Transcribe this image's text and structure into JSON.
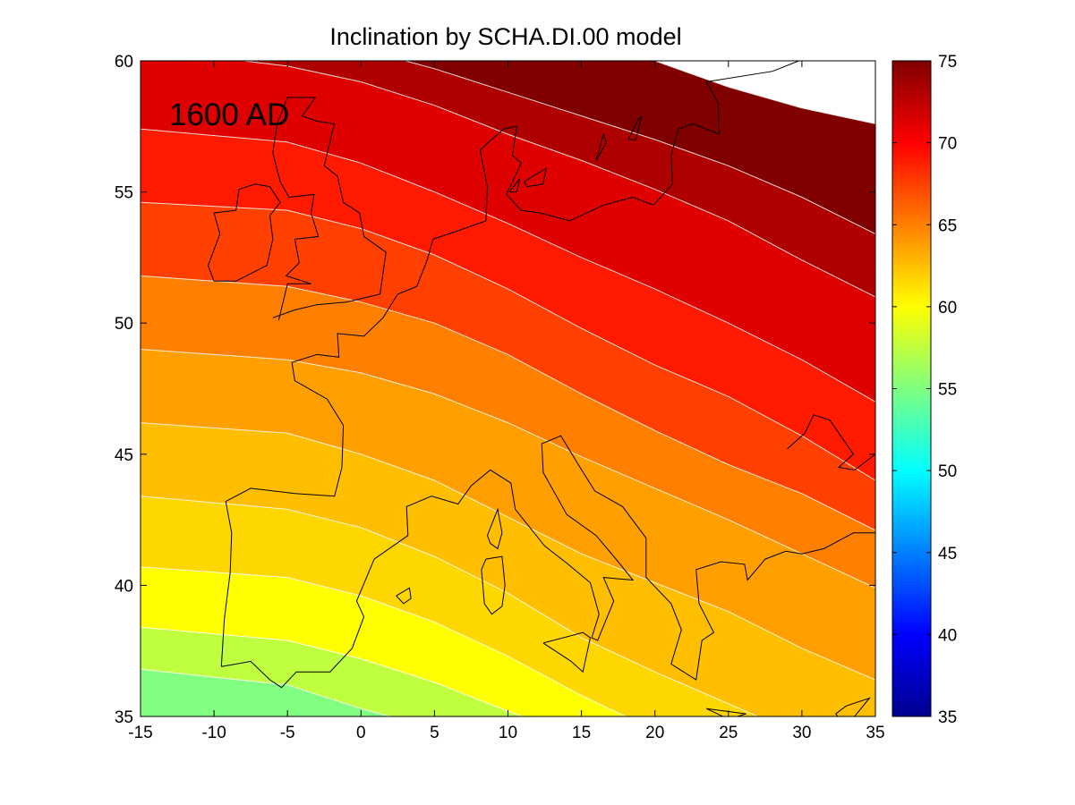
{
  "chart_data": {
    "type": "heatmap",
    "title": "Inclination by SCHA.DI.00 model",
    "annotation": "1600 AD",
    "x": {
      "min": -15,
      "max": 35,
      "ticks": [
        "-15",
        "-10",
        "-5",
        "0",
        "5",
        "10",
        "15",
        "20",
        "25",
        "30",
        "35"
      ]
    },
    "y": {
      "min": 35,
      "max": 60,
      "ticks": [
        "35",
        "40",
        "45",
        "50",
        "55",
        "60"
      ]
    },
    "colorbar": {
      "min": 35,
      "max": 75,
      "ticks": [
        "35",
        "40",
        "45",
        "50",
        "55",
        "60",
        "65",
        "70",
        "75"
      ],
      "colormap": "jet"
    },
    "contour_levels": [
      57.5,
      60,
      62.5,
      65,
      67.5,
      70,
      72.5
    ],
    "contours": [
      {
        "level": 57.5,
        "points": [
          [
            -15,
            36.8
          ],
          [
            -5,
            36.2
          ],
          [
            0,
            35.3
          ],
          [
            2,
            35
          ]
        ]
      },
      {
        "level": 60,
        "points": [
          [
            -15,
            38.4
          ],
          [
            -5,
            37.9
          ],
          [
            0,
            37.2
          ],
          [
            5,
            36.3
          ],
          [
            10,
            35.2
          ],
          [
            11,
            35
          ]
        ]
      },
      {
        "level": 62.5,
        "points": [
          [
            -15,
            40.7
          ],
          [
            -5,
            40.3
          ],
          [
            0,
            39.6
          ],
          [
            5,
            38.6
          ],
          [
            10,
            37.3
          ],
          [
            15,
            35.8
          ],
          [
            18,
            35
          ]
        ]
      },
      {
        "level": 65,
        "points": [
          [
            -15,
            43.4
          ],
          [
            -5,
            42.9
          ],
          [
            0,
            42.2
          ],
          [
            5,
            41.1
          ],
          [
            10,
            39.7
          ],
          [
            15,
            38.0
          ],
          [
            20,
            36.7
          ],
          [
            27,
            35
          ]
        ]
      },
      {
        "level": 67.5,
        "points": [
          [
            -15,
            46.2
          ],
          [
            -5,
            45.8
          ],
          [
            0,
            45.0
          ],
          [
            5,
            44.0
          ],
          [
            10,
            42.6
          ],
          [
            15,
            41.2
          ],
          [
            20,
            40.1
          ],
          [
            25,
            39.0
          ],
          [
            30,
            37.6
          ],
          [
            35,
            36.4
          ]
        ]
      },
      {
        "level": 70,
        "points": [
          [
            -15,
            49.0
          ],
          [
            -5,
            48.6
          ],
          [
            0,
            48.1
          ],
          [
            5,
            47.3
          ],
          [
            10,
            46.2
          ],
          [
            15,
            44.9
          ],
          [
            20,
            43.7
          ],
          [
            25,
            42.5
          ],
          [
            30,
            41.2
          ],
          [
            35,
            39.9
          ]
        ]
      },
      {
        "level": 72.5,
        "points": [
          [
            -15,
            51.8
          ],
          [
            -5,
            51.4
          ],
          [
            0,
            50.8
          ],
          [
            5,
            50.0
          ],
          [
            10,
            48.8
          ],
          [
            15,
            47.3
          ],
          [
            20,
            45.9
          ],
          [
            25,
            44.6
          ],
          [
            30,
            43.5
          ],
          [
            35,
            42.1
          ]
        ]
      },
      {
        "level": 75,
        "points": [
          [
            -15,
            54.6
          ],
          [
            -5,
            54.3
          ],
          [
            0,
            53.6
          ],
          [
            5,
            52.6
          ],
          [
            10,
            51.3
          ],
          [
            15,
            49.8
          ],
          [
            20,
            48.4
          ],
          [
            25,
            47.2
          ],
          [
            30,
            45.7
          ],
          [
            35,
            44.0
          ]
        ]
      },
      {
        "level": 77.5,
        "points": [
          [
            -15,
            57.4
          ],
          [
            -5,
            56.9
          ],
          [
            0,
            56.1
          ],
          [
            5,
            55.0
          ],
          [
            10,
            53.8
          ],
          [
            15,
            52.5
          ],
          [
            20,
            51.3
          ],
          [
            25,
            50.0
          ],
          [
            30,
            48.6
          ],
          [
            35,
            47.0
          ]
        ]
      },
      {
        "level": 80,
        "points": [
          [
            -8,
            60
          ],
          [
            -5,
            59.8
          ],
          [
            0,
            59.2
          ],
          [
            5,
            58.3
          ],
          [
            10,
            57.2
          ],
          [
            15,
            56.2
          ],
          [
            20,
            55.1
          ],
          [
            25,
            53.9
          ],
          [
            30,
            52.4
          ],
          [
            35,
            51.0
          ]
        ]
      },
      {
        "level": 82.5,
        "points": [
          [
            3,
            60
          ],
          [
            5,
            59.7
          ],
          [
            10,
            58.8
          ],
          [
            15,
            57.9
          ],
          [
            20,
            57.0
          ],
          [
            25,
            56.0
          ],
          [
            30,
            54.8
          ],
          [
            35,
            53.4
          ]
        ]
      },
      {
        "level": 85,
        "points": [
          [
            20,
            60
          ],
          [
            25,
            59.0
          ],
          [
            30,
            58.2
          ],
          [
            35,
            57.6
          ]
        ]
      }
    ],
    "color_bands": [
      {
        "range": "57.5-60",
        "color": "#80ff80"
      },
      {
        "range": "60-62.5",
        "color": "#bfff40"
      },
      {
        "range": "62.5-65",
        "color": "#ffff00"
      },
      {
        "range": "65-67.5",
        "color": "#ffd700"
      },
      {
        "range": "67.5-70",
        "color": "#ffbf00"
      },
      {
        "range": "70-72.5",
        "color": "#ff9f00"
      },
      {
        "range": "72.5-75",
        "color": "#ff8000"
      },
      {
        "range": "75-77.5",
        "color": "#ff4000"
      },
      {
        "range": "77.5-80",
        "color": "#ff1a00"
      },
      {
        "range": "80-82.5",
        "color": "#df0000"
      },
      {
        "range": "82.5-85",
        "color": "#af0000"
      },
      {
        "range": "85-87.5",
        "color": "#800000"
      }
    ],
    "coastlines": [
      [
        [
          -9.5,
          36.9
        ],
        [
          -9.3,
          38.7
        ],
        [
          -8.9,
          40.5
        ],
        [
          -8.8,
          42.0
        ],
        [
          -9.2,
          43.2
        ],
        [
          -7.5,
          43.7
        ],
        [
          -4.5,
          43.5
        ],
        [
          -1.8,
          43.4
        ],
        [
          -1.3,
          44.5
        ],
        [
          -1.2,
          46.1
        ],
        [
          -2.3,
          47.1
        ],
        [
          -4.5,
          47.8
        ],
        [
          -4.7,
          48.5
        ],
        [
          -3.0,
          48.8
        ],
        [
          -1.5,
          48.7
        ],
        [
          -1.6,
          49.6
        ],
        [
          0.2,
          49.5
        ],
        [
          1.5,
          50.2
        ],
        [
          2.5,
          51.1
        ],
        [
          3.8,
          51.4
        ],
        [
          4.5,
          52.4
        ],
        [
          4.9,
          53.2
        ],
        [
          6.5,
          53.5
        ],
        [
          8.5,
          53.9
        ],
        [
          8.6,
          55.2
        ],
        [
          8.1,
          56.6
        ],
        [
          9.7,
          57.4
        ],
        [
          10.6,
          57.5
        ],
        [
          10.3,
          56.4
        ],
        [
          10.9,
          56.1
        ],
        [
          9.9,
          54.9
        ],
        [
          10.9,
          54.3
        ],
        [
          12.2,
          54.2
        ],
        [
          14.2,
          53.9
        ],
        [
          16.5,
          54.5
        ],
        [
          18.5,
          54.8
        ],
        [
          19.9,
          54.5
        ],
        [
          21.2,
          55.3
        ],
        [
          21.1,
          56.4
        ],
        [
          21.6,
          57.4
        ],
        [
          22.6,
          57.6
        ],
        [
          24.4,
          57.2
        ],
        [
          24.3,
          58.4
        ],
        [
          23.5,
          59.2
        ],
        [
          28.0,
          59.6
        ],
        [
          29.8,
          60.0
        ]
      ],
      [
        [
          -9.5,
          36.9
        ],
        [
          -7.5,
          37.1
        ],
        [
          -6.2,
          36.4
        ],
        [
          -5.4,
          36.1
        ],
        [
          -4.4,
          36.7
        ],
        [
          -2.1,
          36.7
        ],
        [
          -0.6,
          37.6
        ],
        [
          0.2,
          38.8
        ],
        [
          -0.3,
          39.4
        ],
        [
          0.9,
          41.0
        ],
        [
          3.2,
          41.9
        ],
        [
          3.1,
          43.0
        ],
        [
          4.8,
          43.4
        ],
        [
          6.6,
          43.1
        ],
        [
          7.5,
          43.8
        ],
        [
          8.8,
          44.4
        ],
        [
          10.2,
          43.9
        ],
        [
          10.5,
          42.9
        ],
        [
          12.5,
          41.5
        ],
        [
          14.1,
          40.8
        ],
        [
          15.6,
          40.1
        ],
        [
          16.2,
          38.9
        ],
        [
          15.7,
          38.0
        ],
        [
          16.1,
          37.9
        ],
        [
          17.2,
          39.4
        ],
        [
          16.5,
          40.3
        ],
        [
          18.5,
          40.2
        ],
        [
          17.5,
          40.9
        ],
        [
          16.0,
          41.9
        ],
        [
          14.0,
          42.7
        ],
        [
          12.4,
          44.3
        ],
        [
          12.3,
          45.4
        ],
        [
          13.6,
          45.7
        ],
        [
          14.9,
          44.5
        ],
        [
          15.9,
          43.6
        ],
        [
          17.8,
          43.0
        ],
        [
          19.4,
          41.8
        ],
        [
          19.4,
          40.3
        ],
        [
          21.1,
          39.3
        ],
        [
          21.8,
          38.3
        ],
        [
          21.1,
          37.0
        ],
        [
          22.8,
          36.4
        ],
        [
          23.2,
          37.9
        ],
        [
          24.0,
          38.2
        ],
        [
          23.0,
          39.3
        ],
        [
          22.8,
          40.6
        ],
        [
          24.5,
          40.9
        ],
        [
          26.1,
          40.8
        ],
        [
          26.3,
          40.2
        ],
        [
          27.5,
          41.0
        ],
        [
          28.9,
          41.3
        ],
        [
          30.0,
          41.2
        ],
        [
          31.5,
          41.4
        ],
        [
          33.5,
          42.0
        ],
        [
          35.0,
          42.0
        ]
      ],
      [
        [
          -6.0,
          50.2
        ],
        [
          -4.5,
          50.5
        ],
        [
          -3.0,
          50.7
        ],
        [
          -1.0,
          50.8
        ],
        [
          1.3,
          51.1
        ],
        [
          1.7,
          52.7
        ],
        [
          0.2,
          53.3
        ],
        [
          -0.1,
          54.2
        ],
        [
          -1.2,
          54.6
        ],
        [
          -1.6,
          55.6
        ],
        [
          -2.5,
          56.0
        ],
        [
          -2.0,
          57.2
        ],
        [
          -1.8,
          57.6
        ],
        [
          -3.0,
          57.7
        ],
        [
          -4.0,
          57.9
        ],
        [
          -3.1,
          58.6
        ],
        [
          -5.0,
          58.6
        ],
        [
          -5.7,
          57.6
        ],
        [
          -6.0,
          56.5
        ],
        [
          -5.5,
          55.4
        ],
        [
          -4.9,
          54.8
        ],
        [
          -3.2,
          54.9
        ],
        [
          -3.4,
          54.2
        ],
        [
          -2.9,
          53.3
        ],
        [
          -4.5,
          53.2
        ],
        [
          -4.2,
          52.3
        ],
        [
          -5.1,
          51.8
        ],
        [
          -3.4,
          51.5
        ],
        [
          -5.0,
          51.5
        ],
        [
          -5.6,
          50.1
        ]
      ],
      [
        [
          -10.0,
          51.6
        ],
        [
          -8.5,
          51.6
        ],
        [
          -6.4,
          52.2
        ],
        [
          -6.0,
          53.2
        ],
        [
          -6.2,
          54.1
        ],
        [
          -5.5,
          54.6
        ],
        [
          -6.2,
          55.2
        ],
        [
          -7.2,
          55.3
        ],
        [
          -8.3,
          55.1
        ],
        [
          -8.5,
          54.3
        ],
        [
          -10.0,
          54.2
        ],
        [
          -9.6,
          53.4
        ],
        [
          -10.4,
          52.2
        ],
        [
          -10.0,
          51.6
        ]
      ],
      [
        [
          8.5,
          41.0
        ],
        [
          9.6,
          41.1
        ],
        [
          9.8,
          40.0
        ],
        [
          9.6,
          39.2
        ],
        [
          8.9,
          38.9
        ],
        [
          8.4,
          39.3
        ],
        [
          8.2,
          40.6
        ],
        [
          8.5,
          41.0
        ]
      ],
      [
        [
          8.6,
          41.9
        ],
        [
          9.3,
          42.9
        ],
        [
          9.6,
          42.0
        ],
        [
          9.3,
          41.4
        ],
        [
          8.8,
          41.6
        ],
        [
          8.6,
          41.9
        ]
      ],
      [
        [
          12.4,
          37.8
        ],
        [
          15.1,
          38.2
        ],
        [
          15.6,
          38.0
        ],
        [
          15.1,
          36.7
        ],
        [
          14.3,
          37.1
        ],
        [
          12.4,
          37.8
        ]
      ],
      [
        [
          2.4,
          39.6
        ],
        [
          3.3,
          39.9
        ],
        [
          3.4,
          39.5
        ],
        [
          2.9,
          39.3
        ],
        [
          2.4,
          39.6
        ]
      ],
      [
        [
          23.5,
          35.3
        ],
        [
          26.2,
          35.1
        ],
        [
          25.0,
          34.9
        ],
        [
          23.5,
          35.3
        ]
      ],
      [
        [
          16.0,
          56.2
        ],
        [
          16.5,
          57.2
        ],
        [
          16.7,
          56.9
        ],
        [
          16.0,
          56.2
        ]
      ],
      [
        [
          18.2,
          57.0
        ],
        [
          18.8,
          57.7
        ],
        [
          19.1,
          57.9
        ],
        [
          18.7,
          57.0
        ],
        [
          18.2,
          57.0
        ]
      ],
      [
        [
          10.1,
          55.0
        ],
        [
          10.8,
          55.5
        ],
        [
          10.6,
          55.0
        ],
        [
          10.1,
          55.0
        ]
      ],
      [
        [
          11.1,
          55.4
        ],
        [
          12.6,
          55.9
        ],
        [
          12.4,
          55.3
        ],
        [
          11.3,
          55.2
        ],
        [
          11.1,
          55.4
        ]
      ],
      [
        [
          33.0,
          34.6
        ],
        [
          34.6,
          35.7
        ],
        [
          33.0,
          35.4
        ],
        [
          32.3,
          35.1
        ],
        [
          33.0,
          34.6
        ]
      ],
      [
        [
          29.0,
          45.2
        ],
        [
          30.2,
          45.8
        ],
        [
          30.8,
          46.5
        ],
        [
          31.9,
          46.3
        ],
        [
          33.5,
          45.0
        ],
        [
          32.5,
          44.5
        ],
        [
          33.6,
          44.4
        ],
        [
          35.0,
          45.0
        ]
      ]
    ]
  }
}
